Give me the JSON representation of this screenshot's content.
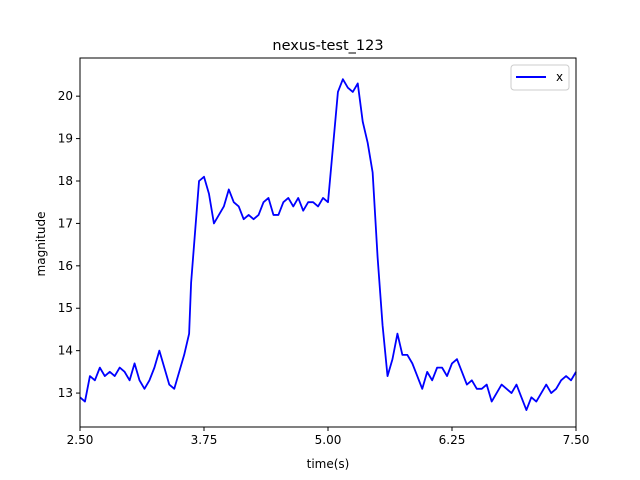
{
  "chart_data": {
    "type": "line",
    "title": "nexus-test_123",
    "xlabel": "time(s)",
    "ylabel": "magnitude",
    "xlim": [
      2.5,
      7.5
    ],
    "ylim": [
      12.2,
      20.9
    ],
    "xticks": [
      2.5,
      3.75,
      5.0,
      6.25,
      7.5
    ],
    "xtick_labels": [
      "2.50",
      "3.75",
      "5.00",
      "6.25",
      "7.50"
    ],
    "yticks": [
      13,
      14,
      15,
      16,
      17,
      18,
      19,
      20
    ],
    "ytick_labels": [
      "13",
      "14",
      "15",
      "16",
      "17",
      "18",
      "19",
      "20"
    ],
    "grid": false,
    "legend_position": "top-right",
    "series": [
      {
        "name": "x",
        "color": "#0000ff",
        "x": [
          2.5,
          2.55,
          2.6,
          2.65,
          2.7,
          2.75,
          2.8,
          2.85,
          2.9,
          2.95,
          3.0,
          3.05,
          3.1,
          3.15,
          3.2,
          3.25,
          3.3,
          3.35,
          3.4,
          3.45,
          3.5,
          3.55,
          3.6,
          3.62,
          3.65,
          3.7,
          3.75,
          3.8,
          3.85,
          3.9,
          3.95,
          4.0,
          4.05,
          4.1,
          4.15,
          4.2,
          4.25,
          4.3,
          4.35,
          4.4,
          4.45,
          4.5,
          4.55,
          4.6,
          4.65,
          4.7,
          4.75,
          4.8,
          4.85,
          4.9,
          4.95,
          5.0,
          5.05,
          5.1,
          5.15,
          5.2,
          5.25,
          5.3,
          5.35,
          5.4,
          5.45,
          5.5,
          5.55,
          5.6,
          5.65,
          5.7,
          5.75,
          5.8,
          5.85,
          5.9,
          5.95,
          6.0,
          6.05,
          6.1,
          6.15,
          6.2,
          6.25,
          6.3,
          6.35,
          6.4,
          6.45,
          6.5,
          6.55,
          6.6,
          6.65,
          6.7,
          6.75,
          6.8,
          6.85,
          6.9,
          6.95,
          7.0,
          7.05,
          7.1,
          7.15,
          7.2,
          7.25,
          7.3,
          7.35,
          7.4,
          7.45,
          7.5
        ],
        "y": [
          12.9,
          12.8,
          13.4,
          13.3,
          13.6,
          13.4,
          13.5,
          13.4,
          13.6,
          13.5,
          13.3,
          13.7,
          13.3,
          13.1,
          13.3,
          13.6,
          14.0,
          13.6,
          13.2,
          13.1,
          13.5,
          13.9,
          14.4,
          15.6,
          16.5,
          18.0,
          18.1,
          17.7,
          17.0,
          17.2,
          17.4,
          17.8,
          17.5,
          17.4,
          17.1,
          17.2,
          17.1,
          17.2,
          17.5,
          17.6,
          17.2,
          17.2,
          17.5,
          17.6,
          17.4,
          17.6,
          17.3,
          17.5,
          17.5,
          17.4,
          17.6,
          17.5,
          18.8,
          20.1,
          20.4,
          20.2,
          20.1,
          20.3,
          19.4,
          18.9,
          18.2,
          16.2,
          14.6,
          13.4,
          13.8,
          14.4,
          13.9,
          13.9,
          13.7,
          13.4,
          13.1,
          13.5,
          13.3,
          13.6,
          13.6,
          13.4,
          13.7,
          13.8,
          13.5,
          13.2,
          13.3,
          13.1,
          13.1,
          13.2,
          12.8,
          13.0,
          13.2,
          13.1,
          13.0,
          13.2,
          12.9,
          12.6,
          12.9,
          12.8,
          13.0,
          13.2,
          13.0,
          13.1,
          13.3,
          13.4,
          13.3,
          13.5
        ]
      }
    ]
  }
}
